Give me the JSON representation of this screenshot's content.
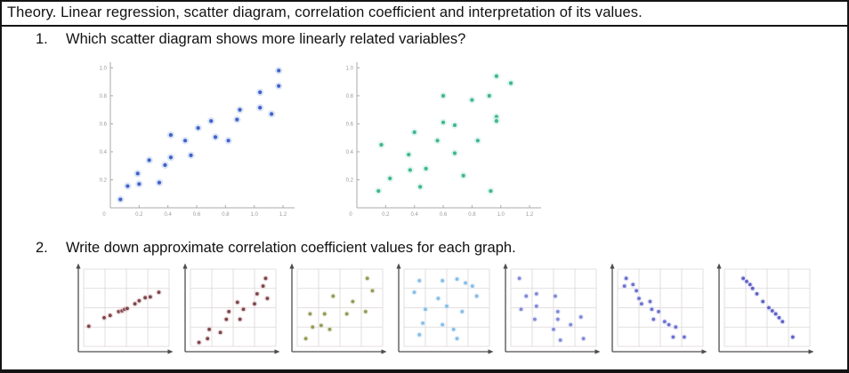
{
  "page": {
    "title": "Theory. Linear regression, scatter diagram, correlation coefficient and interpretation of its values.",
    "questions": [
      {
        "number": "1.",
        "text": "Which scatter diagram shows more linearly related variables?"
      },
      {
        "number": "2.",
        "text": "Write down approximate correlation coefficient values for each graph."
      }
    ]
  },
  "chart_data": [
    {
      "id": "scatter-diagram-1",
      "type": "scatter",
      "style": "axes",
      "title": "",
      "xlabel": "",
      "ylabel": "",
      "xlim": [
        0,
        1.28
      ],
      "ylim": [
        0,
        1.04
      ],
      "x_ticks": [
        0.2,
        0.4,
        0.6,
        0.8,
        1.0,
        1.2
      ],
      "y_ticks": [
        0.2,
        0.4,
        0.6,
        0.8,
        1.0
      ],
      "origin_label": "0",
      "grid": false,
      "color": "#4161c8",
      "halo": "#c3d3f2",
      "points": [
        [
          0.07,
          0.06
        ],
        [
          0.12,
          0.155
        ],
        [
          0.2,
          0.17
        ],
        [
          0.19,
          0.245
        ],
        [
          0.27,
          0.34
        ],
        [
          0.34,
          0.18
        ],
        [
          0.38,
          0.305
        ],
        [
          0.42,
          0.36
        ],
        [
          0.42,
          0.52
        ],
        [
          0.52,
          0.48
        ],
        [
          0.56,
          0.375
        ],
        [
          0.61,
          0.57
        ],
        [
          0.7,
          0.62
        ],
        [
          0.73,
          0.505
        ],
        [
          0.82,
          0.48
        ],
        [
          0.88,
          0.63
        ],
        [
          0.9,
          0.7
        ],
        [
          1.04,
          0.715
        ],
        [
          1.04,
          0.825
        ],
        [
          1.12,
          0.67
        ],
        [
          1.17,
          0.87
        ],
        [
          1.17,
          0.98
        ]
      ]
    },
    {
      "id": "scatter-diagram-2",
      "type": "scatter",
      "style": "axes",
      "title": "",
      "xlabel": "",
      "ylabel": "",
      "xlim": [
        0,
        1.28
      ],
      "ylim": [
        0,
        1.04
      ],
      "x_ticks": [
        0.2,
        0.4,
        0.6,
        0.8,
        1.0,
        1.2
      ],
      "y_ticks": [
        0.2,
        0.4,
        0.6,
        0.8,
        1.0
      ],
      "origin_label": "0",
      "grid": false,
      "color": "#3eb695",
      "halo": "#cfeee4",
      "points": [
        [
          0.15,
          0.12
        ],
        [
          0.17,
          0.45
        ],
        [
          0.23,
          0.21
        ],
        [
          0.36,
          0.38
        ],
        [
          0.37,
          0.27
        ],
        [
          0.4,
          0.54
        ],
        [
          0.44,
          0.15
        ],
        [
          0.48,
          0.28
        ],
        [
          0.56,
          0.48
        ],
        [
          0.6,
          0.61
        ],
        [
          0.6,
          0.8
        ],
        [
          0.68,
          0.59
        ],
        [
          0.68,
          0.39
        ],
        [
          0.74,
          0.23
        ],
        [
          0.8,
          0.77
        ],
        [
          0.84,
          0.48
        ],
        [
          0.92,
          0.8
        ],
        [
          0.93,
          0.12
        ],
        [
          0.97,
          0.94
        ],
        [
          0.97,
          0.65
        ],
        [
          0.97,
          0.62
        ],
        [
          1.07,
          0.89
        ]
      ]
    },
    {
      "id": "correlation-graph-1",
      "type": "scatter",
      "style": "grid",
      "xlim": [
        0,
        1
      ],
      "ylim": [
        0,
        1
      ],
      "grid": true,
      "grid_color": "#dcd5d5",
      "color": "#7e444b",
      "halo": "#dfc9cb",
      "points": [
        [
          0.06,
          0.26
        ],
        [
          0.24,
          0.37
        ],
        [
          0.31,
          0.4
        ],
        [
          0.41,
          0.45
        ],
        [
          0.45,
          0.46
        ],
        [
          0.48,
          0.48
        ],
        [
          0.51,
          0.49
        ],
        [
          0.6,
          0.55
        ],
        [
          0.65,
          0.59
        ],
        [
          0.72,
          0.63
        ],
        [
          0.78,
          0.64
        ],
        [
          0.88,
          0.7
        ]
      ]
    },
    {
      "id": "correlation-graph-2",
      "type": "scatter",
      "style": "grid",
      "xlim": [
        0,
        1
      ],
      "ylim": [
        0,
        1
      ],
      "grid": true,
      "grid_color": "#dcd5d5",
      "color": "#7e444b",
      "halo": "#dfc9cb",
      "points": [
        [
          0.1,
          0.05
        ],
        [
          0.2,
          0.1
        ],
        [
          0.22,
          0.22
        ],
        [
          0.35,
          0.18
        ],
        [
          0.42,
          0.35
        ],
        [
          0.45,
          0.45
        ],
        [
          0.55,
          0.57
        ],
        [
          0.58,
          0.35
        ],
        [
          0.62,
          0.48
        ],
        [
          0.75,
          0.55
        ],
        [
          0.78,
          0.68
        ],
        [
          0.85,
          0.78
        ],
        [
          0.88,
          0.88
        ],
        [
          0.9,
          0.62
        ]
      ]
    },
    {
      "id": "correlation-graph-3",
      "type": "scatter",
      "style": "grid",
      "xlim": [
        0,
        1
      ],
      "ylim": [
        0,
        1
      ],
      "grid": true,
      "grid_color": "#dcd5d5",
      "color": "#949a55",
      "halo": "#e3e5cf",
      "points": [
        [
          0.1,
          0.1
        ],
        [
          0.15,
          0.42
        ],
        [
          0.18,
          0.25
        ],
        [
          0.28,
          0.27
        ],
        [
          0.32,
          0.42
        ],
        [
          0.38,
          0.22
        ],
        [
          0.42,
          0.65
        ],
        [
          0.58,
          0.42
        ],
        [
          0.65,
          0.58
        ],
        [
          0.8,
          0.45
        ],
        [
          0.82,
          0.88
        ],
        [
          0.88,
          0.72
        ]
      ]
    },
    {
      "id": "correlation-graph-4",
      "type": "scatter",
      "style": "grid",
      "xlim": [
        0,
        1
      ],
      "ylim": [
        0,
        1
      ],
      "grid": true,
      "grid_color": "#dcd5d5",
      "color": "#85bde6",
      "halo": "#d7eaf8",
      "points": [
        [
          0.18,
          0.85
        ],
        [
          0.45,
          0.85
        ],
        [
          0.62,
          0.87
        ],
        [
          0.72,
          0.82
        ],
        [
          0.12,
          0.7
        ],
        [
          0.85,
          0.65
        ],
        [
          0.4,
          0.62
        ],
        [
          0.5,
          0.52
        ],
        [
          0.25,
          0.48
        ],
        [
          0.68,
          0.45
        ],
        [
          0.22,
          0.3
        ],
        [
          0.45,
          0.28
        ],
        [
          0.18,
          0.15
        ],
        [
          0.58,
          0.22
        ],
        [
          0.62,
          0.1
        ],
        [
          0.8,
          0.78
        ]
      ]
    },
    {
      "id": "correlation-graph-5",
      "type": "scatter",
      "style": "grid",
      "xlim": [
        0,
        1
      ],
      "ylim": [
        0,
        1
      ],
      "grid": true,
      "grid_color": "#dcd5d5",
      "color": "#8089d8",
      "halo": "#dbdef5",
      "points": [
        [
          0.1,
          0.88
        ],
        [
          0.18,
          0.65
        ],
        [
          0.3,
          0.68
        ],
        [
          0.12,
          0.48
        ],
        [
          0.3,
          0.52
        ],
        [
          0.28,
          0.35
        ],
        [
          0.52,
          0.65
        ],
        [
          0.55,
          0.45
        ],
        [
          0.55,
          0.35
        ],
        [
          0.5,
          0.22
        ],
        [
          0.58,
          0.08
        ],
        [
          0.7,
          0.28
        ],
        [
          0.82,
          0.38
        ],
        [
          0.85,
          0.1
        ]
      ]
    },
    {
      "id": "correlation-graph-6",
      "type": "scatter",
      "style": "grid",
      "xlim": [
        0,
        1
      ],
      "ylim": [
        0,
        1
      ],
      "grid": true,
      "grid_color": "#dcd5d5",
      "color": "#6b70d0",
      "halo": "#d7d9f3",
      "points": [
        [
          0.08,
          0.78
        ],
        [
          0.1,
          0.88
        ],
        [
          0.18,
          0.8
        ],
        [
          0.22,
          0.72
        ],
        [
          0.25,
          0.62
        ],
        [
          0.28,
          0.55
        ],
        [
          0.38,
          0.58
        ],
        [
          0.4,
          0.48
        ],
        [
          0.42,
          0.35
        ],
        [
          0.48,
          0.45
        ],
        [
          0.55,
          0.32
        ],
        [
          0.6,
          0.28
        ],
        [
          0.65,
          0.12
        ],
        [
          0.68,
          0.25
        ],
        [
          0.78,
          0.12
        ]
      ]
    },
    {
      "id": "correlation-graph-7",
      "type": "scatter",
      "style": "grid",
      "xlim": [
        0,
        1
      ],
      "ylim": [
        0,
        1
      ],
      "grid": true,
      "grid_color": "#dcd5d5",
      "color": "#5d61c6",
      "halo": "#d5d7f2",
      "points": [
        [
          0.22,
          0.88
        ],
        [
          0.26,
          0.84
        ],
        [
          0.3,
          0.8
        ],
        [
          0.33,
          0.75
        ],
        [
          0.38,
          0.68
        ],
        [
          0.45,
          0.58
        ],
        [
          0.52,
          0.5
        ],
        [
          0.56,
          0.46
        ],
        [
          0.6,
          0.42
        ],
        [
          0.64,
          0.37
        ],
        [
          0.68,
          0.32
        ],
        [
          0.8,
          0.12
        ]
      ]
    }
  ]
}
